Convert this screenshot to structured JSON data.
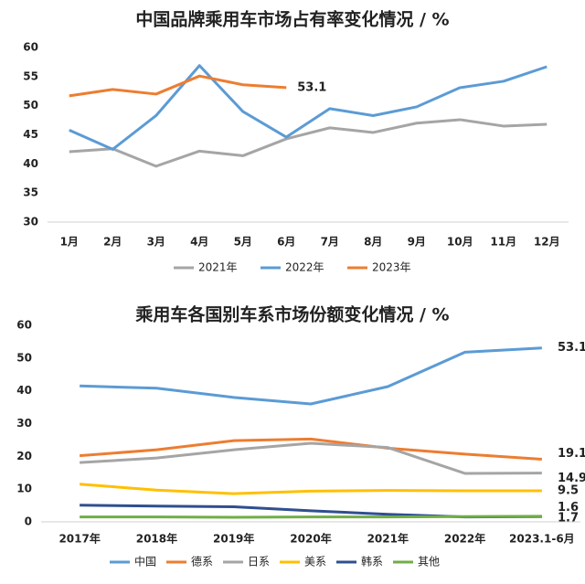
{
  "chart_data": [
    {
      "type": "line",
      "title": "中国品牌乘用车市场占有率变化情况 / %",
      "categories": [
        "1月",
        "2月",
        "3月",
        "4月",
        "5月",
        "6月",
        "7月",
        "8月",
        "9月",
        "10月",
        "11月",
        "12月"
      ],
      "ylim": [
        30,
        60
      ],
      "yticks": [
        30,
        35,
        40,
        45,
        50,
        55,
        60
      ],
      "series": [
        {
          "name": "2021年",
          "color": "#a5a5a5",
          "values": [
            42.1,
            42.6,
            39.6,
            42.2,
            41.4,
            44.3,
            46.2,
            45.4,
            47,
            47.6,
            46.5,
            46.8
          ]
        },
        {
          "name": "2022年",
          "color": "#5b9bd5",
          "values": [
            45.8,
            42.5,
            48.3,
            56.9,
            49,
            44.6,
            49.5,
            48.3,
            49.8,
            53.1,
            54.2,
            56.7
          ]
        },
        {
          "name": "2023年",
          "color": "#ed7d31",
          "values": [
            51.7,
            52.8,
            52,
            55.1,
            53.6,
            53.1,
            null,
            null,
            null,
            null,
            null,
            null
          ]
        }
      ]
    },
    {
      "type": "line",
      "title": "乘用车各国别车系市场份额变化情况 / %",
      "categories": [
        "2017年",
        "2018年",
        "2019年",
        "2020年",
        "2021年",
        "2022年",
        "2023.1-6月"
      ],
      "ylim": [
        0,
        60
      ],
      "yticks": [
        0,
        10,
        20,
        30,
        40,
        50,
        60
      ],
      "series": [
        {
          "name": "中国",
          "color": "#5b9bd5",
          "values": [
            41.5,
            40.8,
            38,
            36,
            41.3,
            51.8,
            53.1
          ]
        },
        {
          "name": "德系",
          "color": "#ed7d31",
          "values": [
            20.2,
            22,
            24.8,
            25.3,
            22.5,
            20.7,
            19.1
          ]
        },
        {
          "name": "日系",
          "color": "#a5a5a5",
          "values": [
            18.1,
            19.5,
            22,
            24,
            22.7,
            14.8,
            14.9
          ]
        },
        {
          "name": "美系",
          "color": "#ffc000",
          "values": [
            11.5,
            9.7,
            8.6,
            9.4,
            9.6,
            9.5,
            9.5
          ]
        },
        {
          "name": "韩系",
          "color": "#2f4f8f",
          "values": [
            5.1,
            4.8,
            4.6,
            3.4,
            2.3,
            1.5,
            1.6
          ]
        },
        {
          "name": "其他",
          "color": "#70ad47",
          "values": [
            1.5,
            1.5,
            1.4,
            1.5,
            1.5,
            1.6,
            1.7
          ]
        }
      ]
    }
  ]
}
